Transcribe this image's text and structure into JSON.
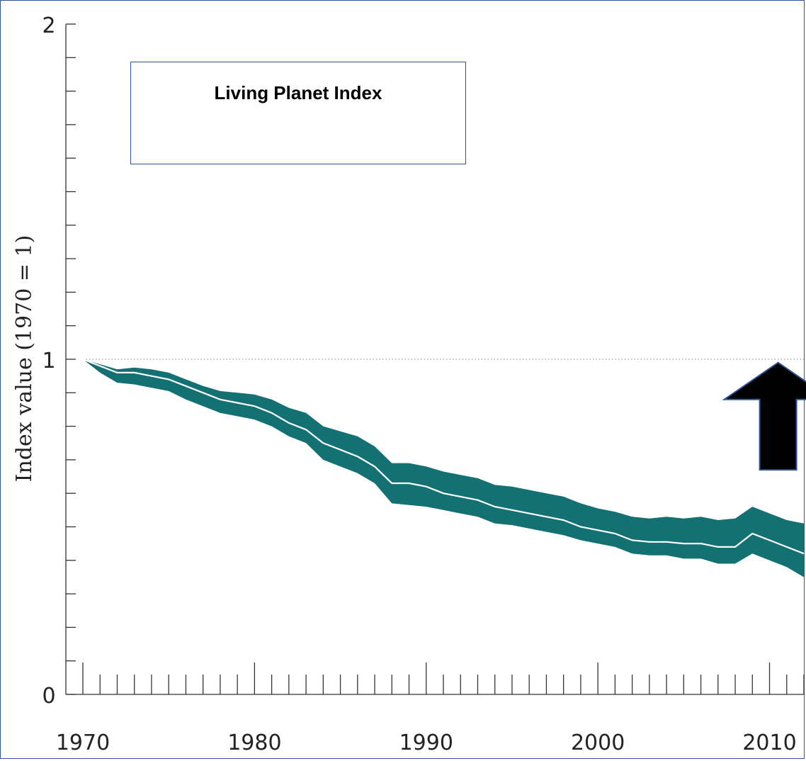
{
  "chart_data": {
    "type": "area",
    "title": "Living Planet Index",
    "ylabel": "Index value (1970 = 1)",
    "xlabel": "",
    "xlim": [
      1970,
      2012
    ],
    "ylim": [
      0,
      2
    ],
    "x_ticks": [
      1970,
      1980,
      1990,
      2000,
      2010
    ],
    "y_ticks": [
      0,
      1,
      2
    ],
    "y_minor_step": 0.1,
    "reference_line": 1,
    "band_color": "#137173",
    "line_color": "#ffffff",
    "years": [
      1970,
      1971,
      1972,
      1973,
      1974,
      1975,
      1976,
      1977,
      1978,
      1979,
      1980,
      1981,
      1982,
      1983,
      1984,
      1985,
      1986,
      1987,
      1988,
      1989,
      1990,
      1991,
      1992,
      1993,
      1994,
      1995,
      1996,
      1997,
      1998,
      1999,
      2000,
      2001,
      2002,
      2003,
      2004,
      2005,
      2006,
      2007,
      2008,
      2009,
      2010,
      2011,
      2012
    ],
    "series": [
      {
        "name": "Living Planet Index",
        "values": [
          1.0,
          0.98,
          0.96,
          0.96,
          0.95,
          0.94,
          0.92,
          0.9,
          0.88,
          0.87,
          0.86,
          0.84,
          0.81,
          0.79,
          0.75,
          0.73,
          0.71,
          0.68,
          0.63,
          0.63,
          0.62,
          0.6,
          0.59,
          0.58,
          0.56,
          0.55,
          0.54,
          0.53,
          0.52,
          0.5,
          0.49,
          0.48,
          0.46,
          0.455,
          0.455,
          0.45,
          0.45,
          0.44,
          0.44,
          0.48,
          0.46,
          0.44,
          0.42
        ],
        "lower": [
          1.0,
          0.96,
          0.93,
          0.925,
          0.915,
          0.905,
          0.88,
          0.86,
          0.84,
          0.83,
          0.82,
          0.8,
          0.77,
          0.75,
          0.7,
          0.68,
          0.66,
          0.63,
          0.57,
          0.565,
          0.56,
          0.55,
          0.54,
          0.53,
          0.51,
          0.505,
          0.495,
          0.485,
          0.475,
          0.46,
          0.45,
          0.44,
          0.42,
          0.415,
          0.415,
          0.405,
          0.405,
          0.39,
          0.39,
          0.42,
          0.4,
          0.38,
          0.35
        ],
        "upper": [
          1.0,
          0.985,
          0.97,
          0.975,
          0.97,
          0.96,
          0.94,
          0.92,
          0.905,
          0.9,
          0.895,
          0.88,
          0.855,
          0.84,
          0.8,
          0.785,
          0.77,
          0.74,
          0.69,
          0.69,
          0.68,
          0.665,
          0.655,
          0.645,
          0.625,
          0.62,
          0.61,
          0.6,
          0.59,
          0.57,
          0.555,
          0.545,
          0.53,
          0.525,
          0.53,
          0.525,
          0.53,
          0.52,
          0.525,
          0.56,
          0.54,
          0.52,
          0.51
        ]
      }
    ],
    "annotations": [
      {
        "type": "arrow",
        "direction": "up",
        "color": "#000000",
        "x": 2010.5,
        "y_from": 0.67,
        "y_to": 0.99
      }
    ]
  }
}
